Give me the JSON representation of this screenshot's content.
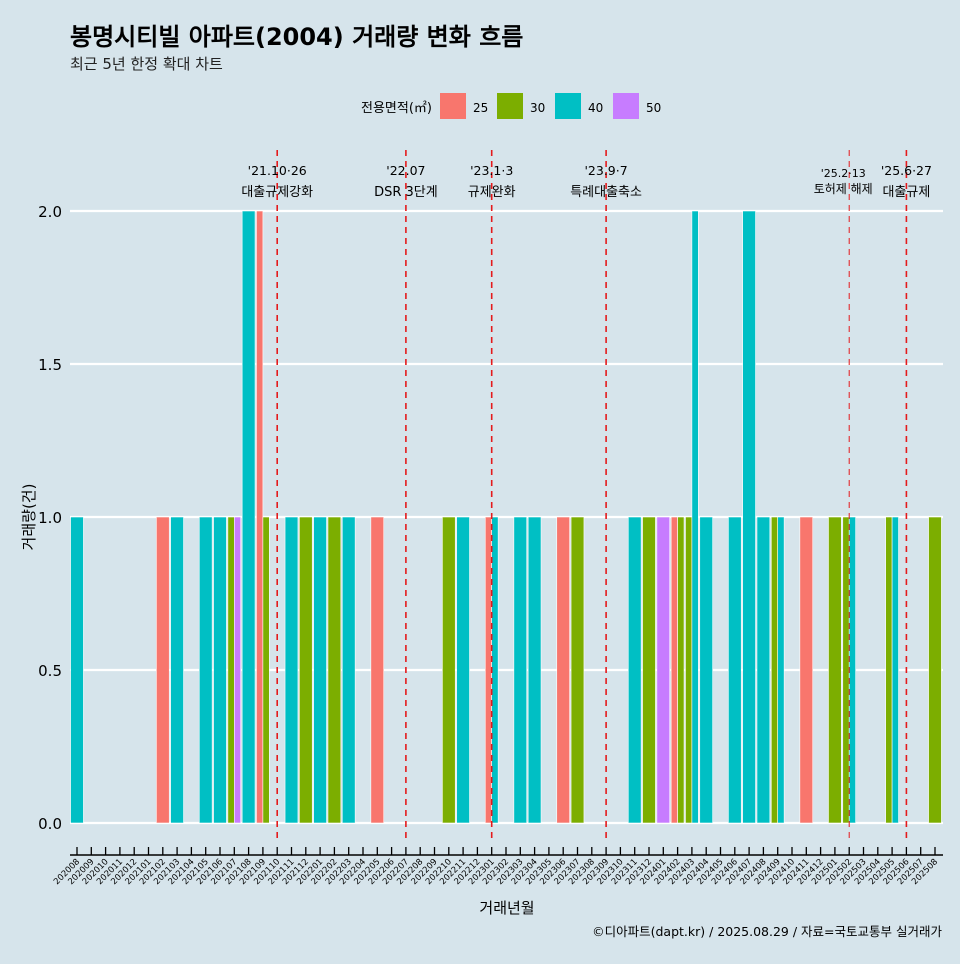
{
  "chart_data": {
    "type": "bar",
    "title": "봉명시티빌 아파트(2004) 거래량 변화 흐름",
    "subtitle": "최근 5년 한정 확대 차트",
    "xlabel": "거래년월",
    "ylabel": "거래량(건)",
    "ylim": [
      0,
      2
    ],
    "yticks": [
      "0.0",
      "0.5",
      "1.0",
      "1.5",
      "2.0"
    ],
    "ytick_values": [
      0,
      0.5,
      1,
      1.5,
      2
    ],
    "caption": "©디아파트(dapt.kr) / 2025.08.29 / 자료=국토교통부 실거래가",
    "legend": {
      "title": "전용면적(㎡)",
      "position": "top",
      "items": [
        {
          "label": "25",
          "color": "#f8766d"
        },
        {
          "label": "30",
          "color": "#7cae00"
        },
        {
          "label": "40",
          "color": "#00bfc4"
        },
        {
          "label": "50",
          "color": "#c77cff"
        }
      ]
    },
    "months": [
      "202008",
      "202009",
      "202010",
      "202011",
      "202012",
      "202101",
      "202102",
      "202103",
      "202104",
      "202105",
      "202106",
      "202107",
      "202108",
      "202109",
      "202110",
      "202111",
      "202112",
      "202201",
      "202202",
      "202203",
      "202204",
      "202205",
      "202206",
      "202207",
      "202208",
      "202209",
      "202210",
      "202211",
      "202212",
      "202301",
      "202302",
      "202303",
      "202304",
      "202305",
      "202306",
      "202307",
      "202308",
      "202309",
      "202310",
      "202311",
      "202312",
      "202401",
      "202402",
      "202403",
      "202404",
      "202405",
      "202406",
      "202407",
      "202408",
      "202409",
      "202410",
      "202411",
      "202412",
      "202501",
      "202502",
      "202503",
      "202504",
      "202505",
      "202506",
      "202507",
      "202508"
    ],
    "bars": [
      {
        "month": "202008",
        "area": "40",
        "count": 1
      },
      {
        "month": "202102",
        "area": "25",
        "count": 1
      },
      {
        "month": "202103",
        "area": "40",
        "count": 1
      },
      {
        "month": "202105",
        "area": "40",
        "count": 1
      },
      {
        "month": "202106",
        "area": "40",
        "count": 1
      },
      {
        "month": "202107",
        "area": "30",
        "count": 1
      },
      {
        "month": "202107",
        "area": "50",
        "count": 1
      },
      {
        "month": "202108",
        "area": "40",
        "count": 2
      },
      {
        "month": "202109",
        "area": "25",
        "count": 2
      },
      {
        "month": "202109",
        "area": "30",
        "count": 1
      },
      {
        "month": "202111",
        "area": "40",
        "count": 1
      },
      {
        "month": "202112",
        "area": "30",
        "count": 1
      },
      {
        "month": "202201",
        "area": "40",
        "count": 1
      },
      {
        "month": "202202",
        "area": "30",
        "count": 1
      },
      {
        "month": "202203",
        "area": "40",
        "count": 1
      },
      {
        "month": "202205",
        "area": "25",
        "count": 1
      },
      {
        "month": "202210",
        "area": "30",
        "count": 1
      },
      {
        "month": "202211",
        "area": "40",
        "count": 1
      },
      {
        "month": "202301",
        "area": "25",
        "count": 1
      },
      {
        "month": "202301",
        "area": "40",
        "count": 1
      },
      {
        "month": "202303",
        "area": "40",
        "count": 1
      },
      {
        "month": "202304",
        "area": "40",
        "count": 1
      },
      {
        "month": "202306",
        "area": "25",
        "count": 1
      },
      {
        "month": "202307",
        "area": "30",
        "count": 1
      },
      {
        "month": "202311",
        "area": "40",
        "count": 1
      },
      {
        "month": "202312",
        "area": "30",
        "count": 1
      },
      {
        "month": "202401",
        "area": "50",
        "count": 1
      },
      {
        "month": "202402",
        "area": "25",
        "count": 1
      },
      {
        "month": "202402",
        "area": "30",
        "count": 1
      },
      {
        "month": "202403",
        "area": "30",
        "count": 1
      },
      {
        "month": "202403",
        "area": "40",
        "count": 2
      },
      {
        "month": "202404",
        "area": "40",
        "count": 1
      },
      {
        "month": "202406",
        "area": "40",
        "count": 1
      },
      {
        "month": "202407",
        "area": "40",
        "count": 2
      },
      {
        "month": "202408",
        "area": "40",
        "count": 1
      },
      {
        "month": "202409",
        "area": "30",
        "count": 1
      },
      {
        "month": "202409",
        "area": "40",
        "count": 1
      },
      {
        "month": "202411",
        "area": "25",
        "count": 1
      },
      {
        "month": "202501",
        "area": "30",
        "count": 1
      },
      {
        "month": "202502",
        "area": "30",
        "count": 1
      },
      {
        "month": "202502",
        "area": "40",
        "count": 1
      },
      {
        "month": "202505",
        "area": "30",
        "count": 1
      },
      {
        "month": "202505",
        "area": "40",
        "count": 1
      },
      {
        "month": "202508",
        "area": "30",
        "count": 1
      }
    ],
    "events": [
      {
        "month": "202110",
        "date": "'21.10·26",
        "label": "대출규제강화",
        "style": "major"
      },
      {
        "month": "202207",
        "date": "'22.07",
        "label": "DSR 3단계",
        "style": "major"
      },
      {
        "month": "202301",
        "date": "'23.1·3",
        "label": "규제완화",
        "style": "major"
      },
      {
        "month": "202309",
        "date": "'23.9·7",
        "label": "특례대출축소",
        "style": "major"
      },
      {
        "month": "202502",
        "date": "'25.2·13",
        "label": "토허제 해제",
        "style": "minor"
      },
      {
        "month": "202506",
        "date": "'25.6·27",
        "label": "대출규제",
        "style": "major"
      }
    ],
    "event_color": "#e41a1c",
    "grid": true
  }
}
